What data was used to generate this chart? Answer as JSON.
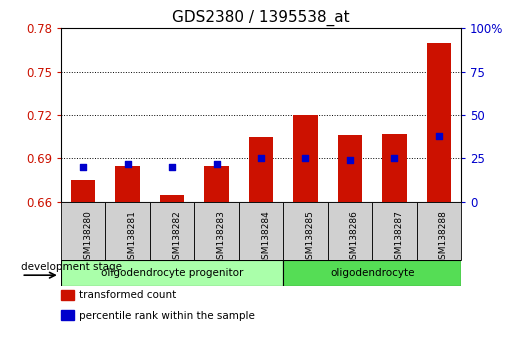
{
  "title": "GDS2380 / 1395538_at",
  "samples": [
    "GSM138280",
    "GSM138281",
    "GSM138282",
    "GSM138283",
    "GSM138284",
    "GSM138285",
    "GSM138286",
    "GSM138287",
    "GSM138288"
  ],
  "transformed_count": [
    0.675,
    0.685,
    0.665,
    0.685,
    0.705,
    0.72,
    0.706,
    0.707,
    0.77
  ],
  "percentile_rank": [
    20,
    22,
    20,
    22,
    25,
    25,
    24,
    25,
    38
  ],
  "ylim_left": [
    0.66,
    0.78
  ],
  "ylim_right": [
    0,
    100
  ],
  "yticks_left": [
    0.66,
    0.69,
    0.72,
    0.75,
    0.78
  ],
  "yticks_right": [
    0,
    25,
    50,
    75,
    100
  ],
  "ytick_labels_left": [
    "0.66",
    "0.69",
    "0.72",
    "0.75",
    "0.78"
  ],
  "ytick_labels_right": [
    "0",
    "25",
    "50",
    "75",
    "100%"
  ],
  "bar_color": "#cc1100",
  "dot_color": "#0000cc",
  "bar_bottom": 0.66,
  "groups": [
    {
      "label": "oligodendrocyte progenitor",
      "start": 0,
      "end": 5,
      "color": "#aaffaa"
    },
    {
      "label": "oligodendrocyte",
      "start": 5,
      "end": 9,
      "color": "#55dd55"
    }
  ],
  "dev_stage_label": "development stage",
  "legend_items": [
    {
      "label": "transformed count",
      "color": "#cc1100"
    },
    {
      "label": "percentile rank within the sample",
      "color": "#0000cc"
    }
  ],
  "background_color": "#ffffff",
  "title_fontsize": 11,
  "tick_label_color_left": "#cc1100",
  "tick_label_color_right": "#0000cc",
  "sample_box_color": "#d0d0d0",
  "grid_yticks": [
    0.69,
    0.72,
    0.75
  ]
}
